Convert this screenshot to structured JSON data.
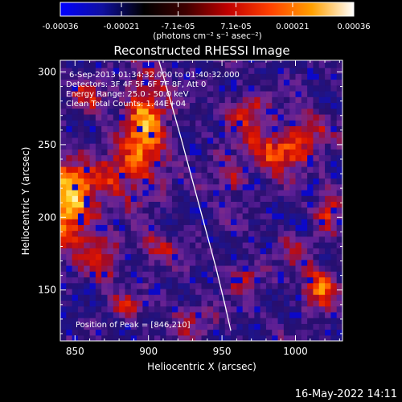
{
  "colorbar": {
    "tick_labels": [
      "-0.00036",
      "-0.00021",
      "-7.1e-05",
      "7.1e-05",
      "0.00021",
      "0.00036"
    ],
    "tick_values": [
      -0.00036,
      -0.00021,
      -7.1e-05,
      7.1e-05,
      0.00021,
      0.00036
    ],
    "range": [
      -0.00036,
      0.00036
    ],
    "units_label": "(photons cm⁻² s⁻¹ asec⁻²)",
    "colors": [
      "#0000ff",
      "#1010a0",
      "#000000",
      "#400000",
      "#c00000",
      "#ff4000",
      "#ffa000",
      "#ffffff"
    ]
  },
  "chart_data": {
    "type": "heatmap",
    "title": "Reconstructed RHESSI Image",
    "xlabel": "Heliocentric X (arcsec)",
    "ylabel": "Heliocentric Y (arcsec)",
    "xlim": [
      840,
      1032
    ],
    "ylim": [
      115,
      308
    ],
    "x_ticks": [
      850,
      900,
      950,
      1000
    ],
    "y_ticks": [
      150,
      200,
      250,
      300
    ],
    "annotations": {
      "time": "6-Sep-2013 01:34:32.000 to 01:40:32.000",
      "detectors": "Detectors: 3F 4F 5F 6F 7F 8F, Att 0",
      "energy": "Energy Range: 25.0 - 50.0 keV",
      "clean": "Clean    Total Counts: 1.44E+04",
      "peak": "Position of Peak = [846,210]"
    },
    "peak_position": [
      846,
      210
    ],
    "limb_curve": [
      [
        907,
        308
      ],
      [
        915,
        280
      ],
      [
        922,
        255
      ],
      [
        930,
        225
      ],
      [
        938,
        195
      ],
      [
        946,
        165
      ],
      [
        952,
        140
      ],
      [
        956,
        122
      ]
    ],
    "hot_spots": [
      {
        "x": 846,
        "y": 210,
        "amp": 1.0,
        "sx": 14,
        "sy": 20
      },
      {
        "x": 898,
        "y": 262,
        "amp": 0.85,
        "sx": 10,
        "sy": 26
      },
      {
        "x": 880,
        "y": 230,
        "amp": 0.5,
        "sx": 10,
        "sy": 12
      },
      {
        "x": 870,
        "y": 170,
        "amp": 0.55,
        "sx": 8,
        "sy": 10
      },
      {
        "x": 990,
        "y": 246,
        "amp": 0.75,
        "sx": 14,
        "sy": 10
      },
      {
        "x": 968,
        "y": 272,
        "amp": 0.55,
        "sx": 10,
        "sy": 10
      },
      {
        "x": 1010,
        "y": 262,
        "amp": 0.45,
        "sx": 8,
        "sy": 8
      },
      {
        "x": 955,
        "y": 228,
        "amp": 0.45,
        "sx": 8,
        "sy": 10
      },
      {
        "x": 1016,
        "y": 150,
        "amp": 0.7,
        "sx": 8,
        "sy": 10
      },
      {
        "x": 1022,
        "y": 206,
        "amp": 0.5,
        "sx": 6,
        "sy": 12
      },
      {
        "x": 965,
        "y": 160,
        "amp": 0.45,
        "sx": 8,
        "sy": 8
      },
      {
        "x": 905,
        "y": 178,
        "amp": 0.4,
        "sx": 10,
        "sy": 8
      },
      {
        "x": 930,
        "y": 130,
        "amp": 0.4,
        "sx": 10,
        "sy": 8
      },
      {
        "x": 860,
        "y": 285,
        "amp": 0.4,
        "sx": 8,
        "sy": 8
      },
      {
        "x": 1000,
        "y": 178,
        "amp": 0.35,
        "sx": 8,
        "sy": 8
      },
      {
        "x": 885,
        "y": 140,
        "amp": 0.35,
        "sx": 8,
        "sy": 6
      }
    ]
  },
  "footer": {
    "timestamp": "16-May-2022 14:11"
  }
}
